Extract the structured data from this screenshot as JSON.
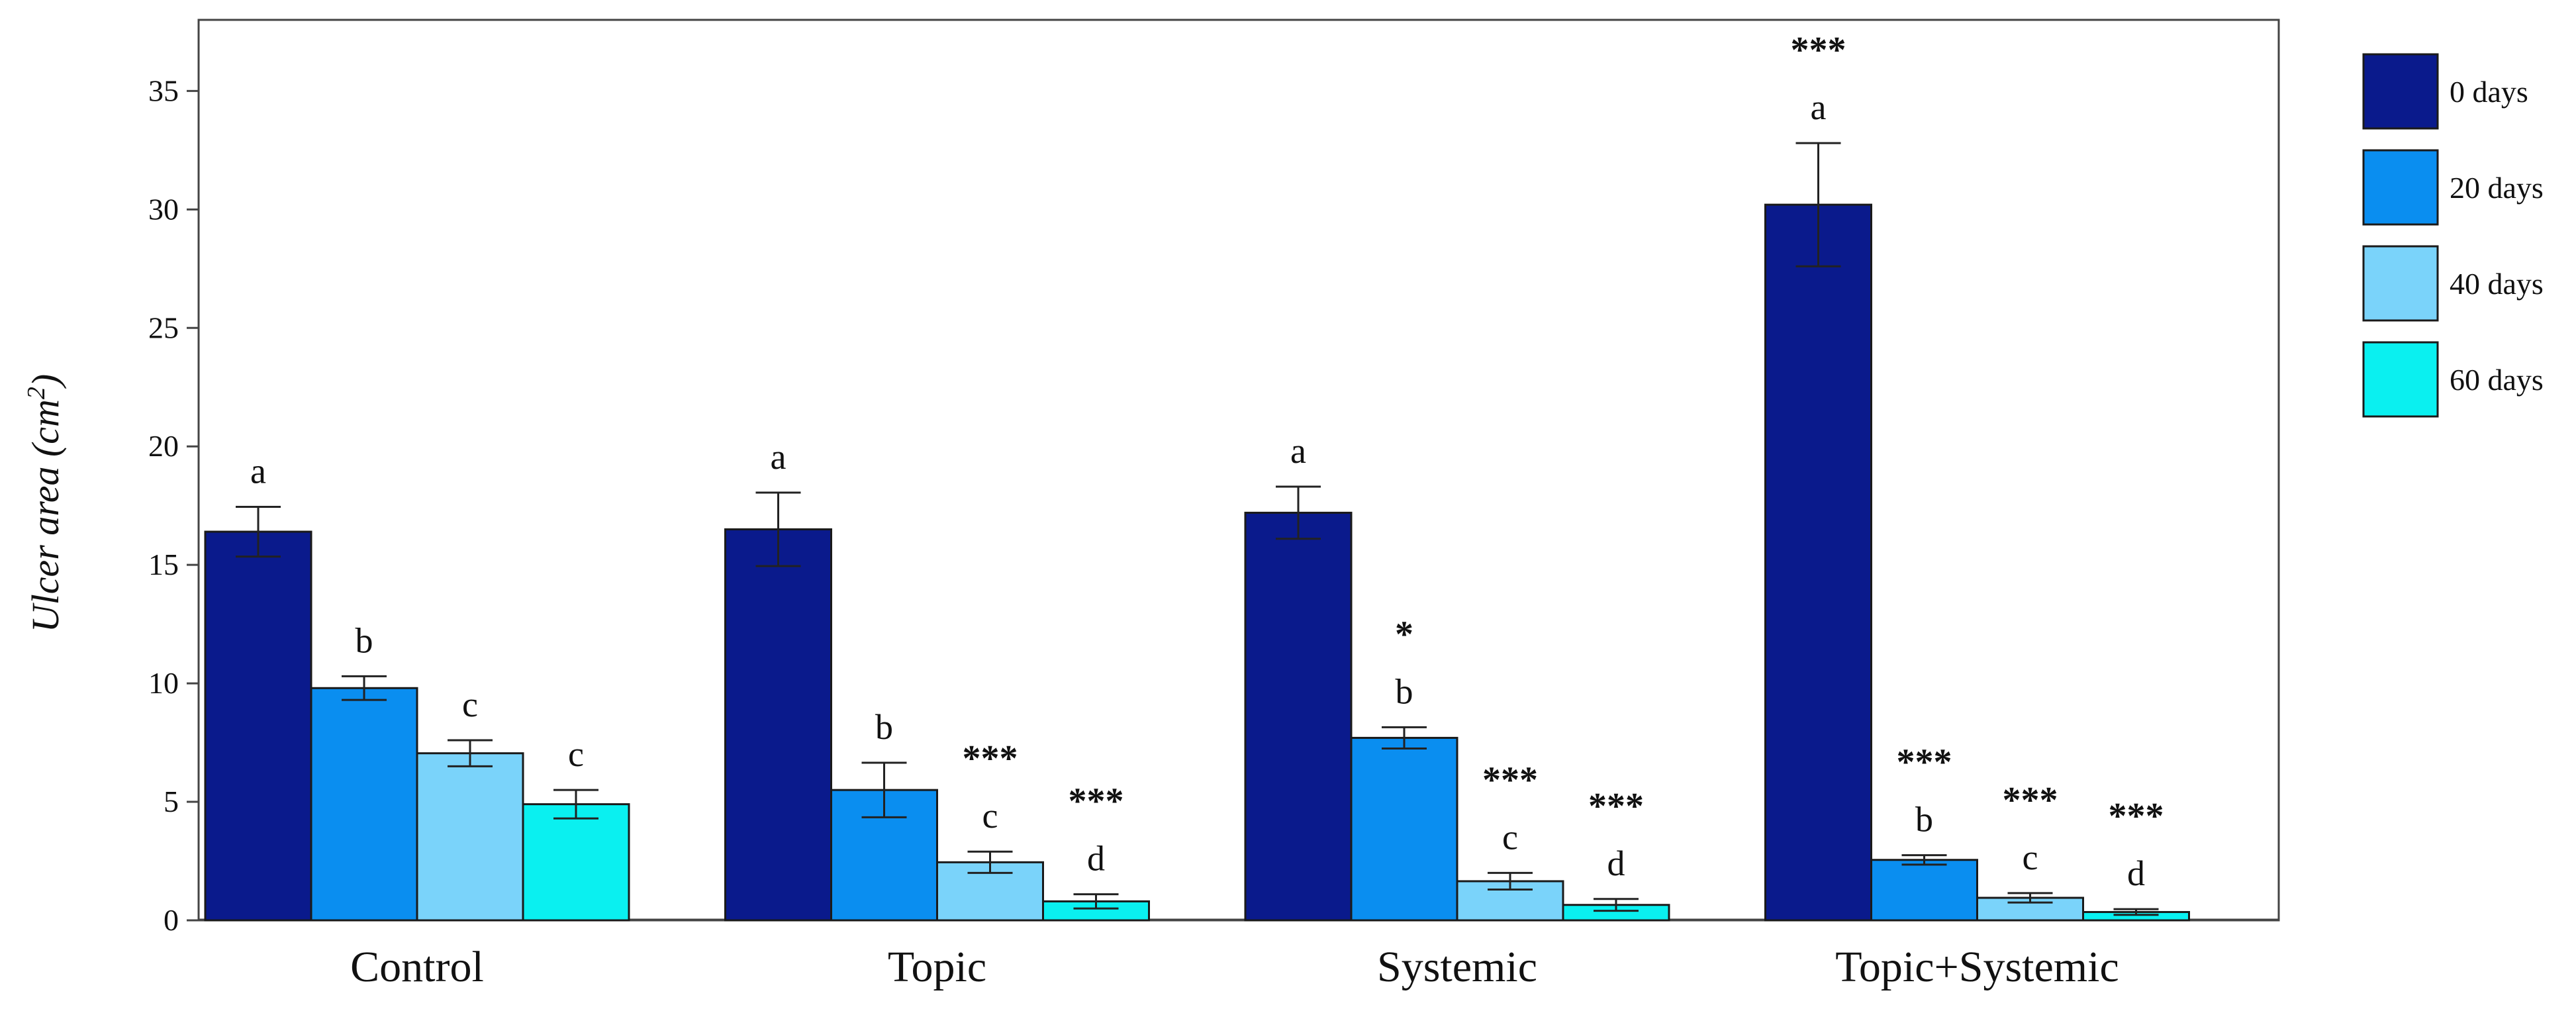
{
  "chart_data": {
    "type": "bar",
    "title": "",
    "xlabel": "",
    "ylabel_prefix": "Ulcer area (cm",
    "ylabel_sup": "2",
    "ylabel_suffix": ")",
    "ylim": [
      0,
      38
    ],
    "yticks": [
      0,
      5,
      10,
      15,
      20,
      25,
      30,
      35
    ],
    "grid": false,
    "legend_position": "right",
    "categories": [
      "Control",
      "Topic",
      "Systemic",
      "Topic+Systemic"
    ],
    "series": [
      {
        "name": "0 days",
        "color": "#0a1a8c",
        "values": [
          16.4,
          16.5,
          17.2,
          30.2
        ],
        "errors": [
          1.05,
          1.55,
          1.1,
          2.6
        ]
      },
      {
        "name": "20 days",
        "color": "#0a8ef0",
        "values": [
          9.8,
          5.5,
          7.7,
          2.55
        ],
        "errors": [
          0.5,
          1.15,
          0.45,
          0.2
        ]
      },
      {
        "name": "40 days",
        "color": "#7ad3fa",
        "values": [
          7.05,
          2.45,
          1.65,
          0.95
        ],
        "errors": [
          0.55,
          0.45,
          0.35,
          0.2
        ]
      },
      {
        "name": "60 days",
        "color": "#0af0f0",
        "values": [
          4.9,
          0.8,
          0.65,
          0.35
        ],
        "errors": [
          0.6,
          0.3,
          0.25,
          0.12
        ]
      }
    ],
    "annotations": [
      [
        "a",
        "a",
        "a",
        "a"
      ],
      [
        "b",
        "b",
        "b",
        "b"
      ],
      [
        "c",
        "c",
        "c",
        "c"
      ],
      [
        "c",
        "d",
        "d",
        "d"
      ]
    ],
    "significance": [
      [
        "",
        "",
        "",
        "***"
      ],
      [
        "",
        "",
        "*",
        "***"
      ],
      [
        "",
        "***",
        "***",
        "***"
      ],
      [
        "",
        "***",
        "***",
        "***"
      ]
    ]
  }
}
